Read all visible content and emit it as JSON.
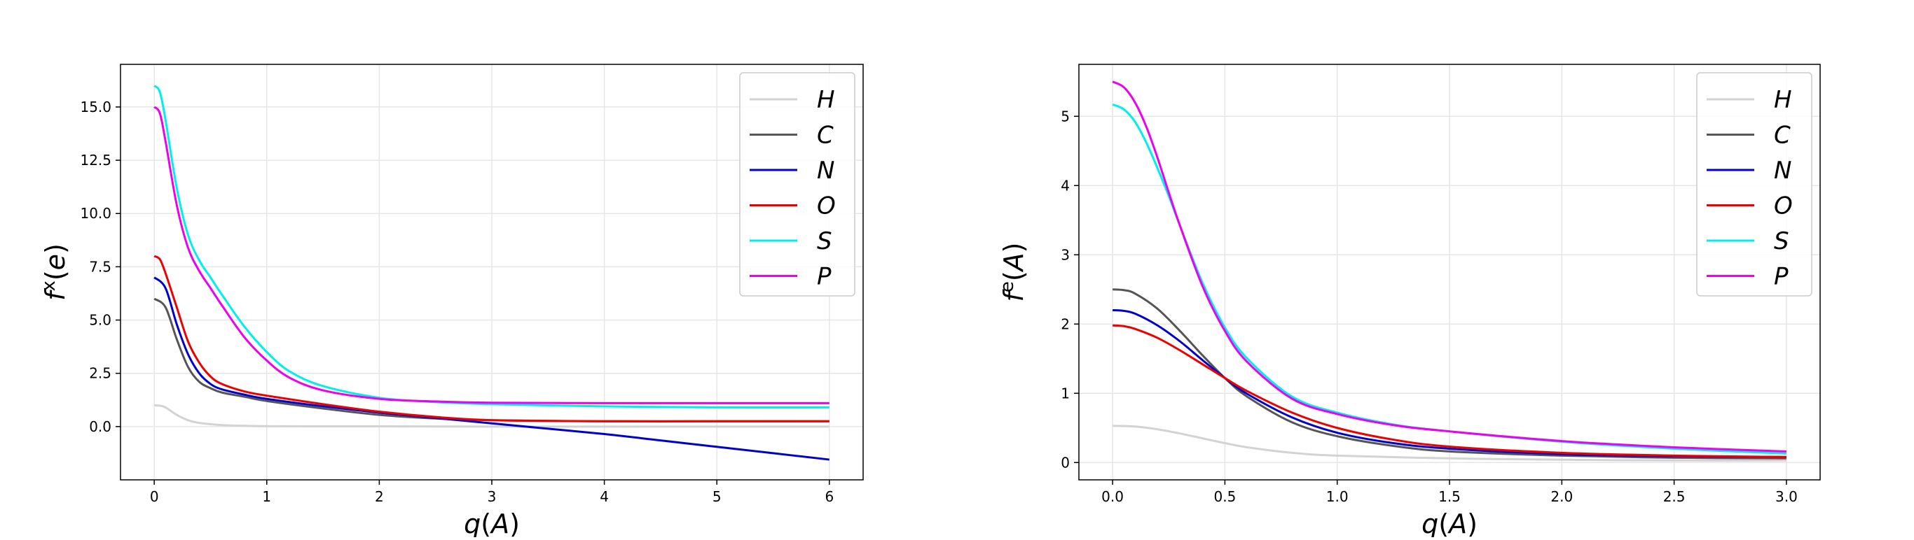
{
  "chart_data": [
    {
      "type": "line",
      "xlabel": "q(A)",
      "ylabel_base": "f",
      "ylabel_sup": "x",
      "ylabel_suffix": "(e)",
      "xlim": [
        -0.3,
        6.3
      ],
      "ylim": [
        -2.5,
        17.0
      ],
      "xticks": [
        0,
        1,
        2,
        3,
        4,
        5,
        6
      ],
      "xtick_labels": [
        "0",
        "1",
        "2",
        "3",
        "4",
        "5",
        "6"
      ],
      "yticks": [
        0.0,
        2.5,
        5.0,
        7.5,
        10.0,
        12.5,
        15.0
      ],
      "ytick_labels": [
        "0.0",
        "2.5",
        "5.0",
        "7.5",
        "10.0",
        "12.5",
        "15.0"
      ],
      "grid": true,
      "legend_position": "top-right",
      "series": [
        {
          "name": "H",
          "color": "#d3d3d3",
          "x": [
            0,
            0.05,
            0.1,
            0.2,
            0.3,
            0.4,
            0.6,
            0.8,
            1.0,
            1.5,
            2,
            3,
            4,
            5,
            6
          ],
          "y": [
            1.0,
            0.98,
            0.9,
            0.55,
            0.3,
            0.17,
            0.07,
            0.04,
            0.02,
            0.01,
            0.01,
            0.0,
            0.0,
            0.0,
            0.0
          ]
        },
        {
          "name": "C",
          "color": "#555555",
          "x": [
            0,
            0.1,
            0.2,
            0.3,
            0.4,
            0.5,
            0.6,
            0.8,
            1.0,
            1.5,
            2,
            2.5,
            3,
            4,
            5,
            6
          ],
          "y": [
            6.0,
            5.6,
            4.1,
            2.8,
            2.1,
            1.8,
            1.6,
            1.4,
            1.2,
            0.85,
            0.55,
            0.38,
            0.3,
            0.25,
            0.25,
            0.25
          ]
        },
        {
          "name": "N",
          "color": "#0000cc",
          "x": [
            0,
            0.1,
            0.2,
            0.3,
            0.4,
            0.5,
            0.6,
            0.8,
            1.0,
            1.5,
            2,
            2.5,
            3,
            3.5,
            4,
            4.5,
            5,
            5.5,
            6
          ],
          "y": [
            7.0,
            6.5,
            4.8,
            3.4,
            2.5,
            2.0,
            1.75,
            1.5,
            1.3,
            0.95,
            0.65,
            0.4,
            0.15,
            -0.1,
            -0.35,
            -0.65,
            -0.95,
            -1.25,
            -1.55
          ]
        },
        {
          "name": "O",
          "color": "#ee0000",
          "x": [
            0,
            0.05,
            0.1,
            0.2,
            0.3,
            0.4,
            0.5,
            0.6,
            0.8,
            1.0,
            1.5,
            2,
            2.5,
            3,
            4,
            5,
            6
          ],
          "y": [
            8.0,
            7.85,
            7.2,
            5.6,
            4.0,
            3.0,
            2.35,
            2.0,
            1.65,
            1.45,
            1.05,
            0.7,
            0.45,
            0.3,
            0.25,
            0.25,
            0.25
          ]
        },
        {
          "name": "S",
          "color": "#00eeee",
          "x": [
            0,
            0.05,
            0.1,
            0.2,
            0.3,
            0.4,
            0.5,
            0.6,
            0.8,
            1.0,
            1.2,
            1.5,
            2,
            2.5,
            3,
            4,
            5,
            6
          ],
          "y": [
            16.0,
            15.7,
            14.4,
            11.2,
            9.0,
            7.8,
            7.0,
            6.2,
            4.7,
            3.5,
            2.6,
            1.9,
            1.35,
            1.15,
            1.05,
            0.95,
            0.9,
            0.9
          ]
        },
        {
          "name": "P",
          "color": "#ee00ee",
          "x": [
            0,
            0.05,
            0.1,
            0.2,
            0.3,
            0.4,
            0.5,
            0.6,
            0.8,
            1.0,
            1.2,
            1.5,
            2,
            2.5,
            3,
            4,
            5,
            6
          ],
          "y": [
            15.0,
            14.7,
            13.4,
            10.4,
            8.4,
            7.3,
            6.5,
            5.7,
            4.2,
            3.1,
            2.3,
            1.7,
            1.3,
            1.18,
            1.12,
            1.1,
            1.1,
            1.1
          ]
        }
      ]
    },
    {
      "type": "line",
      "xlabel": "q(A)",
      "ylabel_base": "f",
      "ylabel_sup": "e",
      "ylabel_suffix": "(A)",
      "xlim": [
        -0.15,
        3.15
      ],
      "ylim": [
        -0.25,
        5.75
      ],
      "xticks": [
        0.0,
        0.5,
        1.0,
        1.5,
        2.0,
        2.5,
        3.0
      ],
      "xtick_labels": [
        "0.0",
        "0.5",
        "1.0",
        "1.5",
        "2.0",
        "2.5",
        "3.0"
      ],
      "yticks": [
        0,
        1,
        2,
        3,
        4,
        5
      ],
      "ytick_labels": [
        "0",
        "1",
        "2",
        "3",
        "4",
        "5"
      ],
      "grid": true,
      "legend_position": "top-right",
      "series": [
        {
          "name": "H",
          "color": "#d3d3d3",
          "x": [
            0,
            0.1,
            0.2,
            0.3,
            0.4,
            0.5,
            0.6,
            0.8,
            1.0,
            1.5,
            2.0,
            2.5,
            3.0
          ],
          "y": [
            0.53,
            0.52,
            0.48,
            0.42,
            0.35,
            0.28,
            0.22,
            0.14,
            0.1,
            0.06,
            0.04,
            0.03,
            0.03
          ]
        },
        {
          "name": "C",
          "color": "#555555",
          "x": [
            0,
            0.05,
            0.1,
            0.2,
            0.3,
            0.4,
            0.5,
            0.6,
            0.8,
            1.0,
            1.25,
            1.5,
            2.0,
            2.5,
            3.0
          ],
          "y": [
            2.5,
            2.49,
            2.44,
            2.22,
            1.9,
            1.55,
            1.22,
            0.95,
            0.58,
            0.38,
            0.24,
            0.16,
            0.1,
            0.07,
            0.06
          ]
        },
        {
          "name": "N",
          "color": "#0000cc",
          "x": [
            0,
            0.05,
            0.1,
            0.2,
            0.3,
            0.4,
            0.5,
            0.6,
            0.8,
            1.0,
            1.25,
            1.5,
            2.0,
            2.5,
            3.0
          ],
          "y": [
            2.2,
            2.19,
            2.15,
            1.98,
            1.75,
            1.48,
            1.22,
            0.99,
            0.65,
            0.43,
            0.28,
            0.2,
            0.12,
            0.09,
            0.08
          ]
        },
        {
          "name": "O",
          "color": "#ee0000",
          "x": [
            0,
            0.05,
            0.1,
            0.2,
            0.3,
            0.4,
            0.5,
            0.6,
            0.8,
            1.0,
            1.25,
            1.5,
            2.0,
            2.5,
            3.0
          ],
          "y": [
            1.98,
            1.97,
            1.93,
            1.8,
            1.62,
            1.42,
            1.22,
            1.03,
            0.72,
            0.5,
            0.33,
            0.23,
            0.14,
            0.1,
            0.08
          ]
        },
        {
          "name": "S",
          "color": "#00eeee",
          "x": [
            0,
            0.05,
            0.1,
            0.15,
            0.2,
            0.25,
            0.3,
            0.4,
            0.5,
            0.6,
            0.8,
            1.0,
            1.25,
            1.5,
            2.0,
            2.5,
            3.0
          ],
          "y": [
            5.17,
            5.1,
            4.92,
            4.62,
            4.25,
            3.85,
            3.42,
            2.6,
            1.95,
            1.5,
            0.95,
            0.72,
            0.55,
            0.45,
            0.3,
            0.2,
            0.13
          ]
        },
        {
          "name": "P",
          "color": "#ee00ee",
          "x": [
            0,
            0.05,
            0.1,
            0.15,
            0.2,
            0.25,
            0.3,
            0.4,
            0.5,
            0.6,
            0.8,
            1.0,
            1.25,
            1.5,
            2.0,
            2.5,
            3.0
          ],
          "y": [
            5.5,
            5.42,
            5.2,
            4.85,
            4.4,
            3.9,
            3.42,
            2.55,
            1.9,
            1.45,
            0.92,
            0.7,
            0.54,
            0.45,
            0.31,
            0.22,
            0.16
          ]
        }
      ]
    }
  ]
}
